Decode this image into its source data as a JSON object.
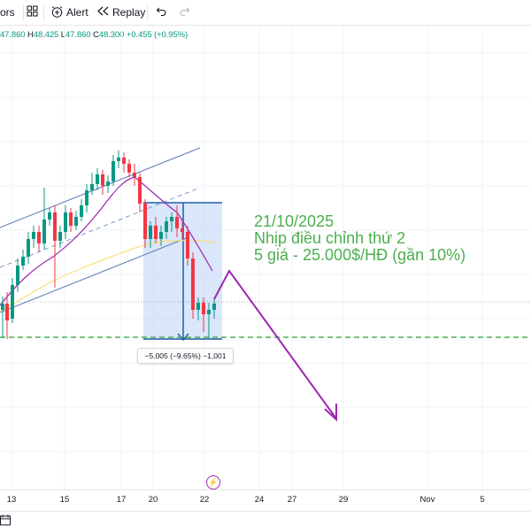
{
  "toolbar": {
    "indicators_label": "ors",
    "alert_label": "Alert",
    "replay_label": "Replay",
    "layout_icon": "grid-icon",
    "alert_icon": "alarm-plus-icon",
    "replay_icon": "rewind-icon",
    "undo_icon": "undo-icon",
    "redo_icon": "redo-icon"
  },
  "ohlc": {
    "open_value": "47.860",
    "high_key": "H",
    "high_value": "48.425",
    "low_key": "L",
    "low_value": "47.860",
    "close_key": "C",
    "close_value": "48.300",
    "change": "+0.455 (+0.95%)"
  },
  "annotation": {
    "line1": "21/10/2025",
    "line2": "Nhịp điều chỉnh thứ 2",
    "line3": "5 giá - 25.000$/HĐ (gần 10%)",
    "color": "#4caf50"
  },
  "measure_label": "−5.005 (−9.65%) −1,001",
  "x_axis_labels": [
    "13",
    "15",
    "17",
    "20",
    "22",
    "24",
    "27",
    "29",
    "Nov",
    "5"
  ],
  "colors": {
    "up": "#089981",
    "down": "#f23645",
    "channel": "#5b7bb5",
    "ma_fast": "#9c27b0",
    "ma_slow": "#f7e17b",
    "box": "#1e5fa8",
    "support": "#4caf50",
    "arrow": "#9c27b0"
  }
}
